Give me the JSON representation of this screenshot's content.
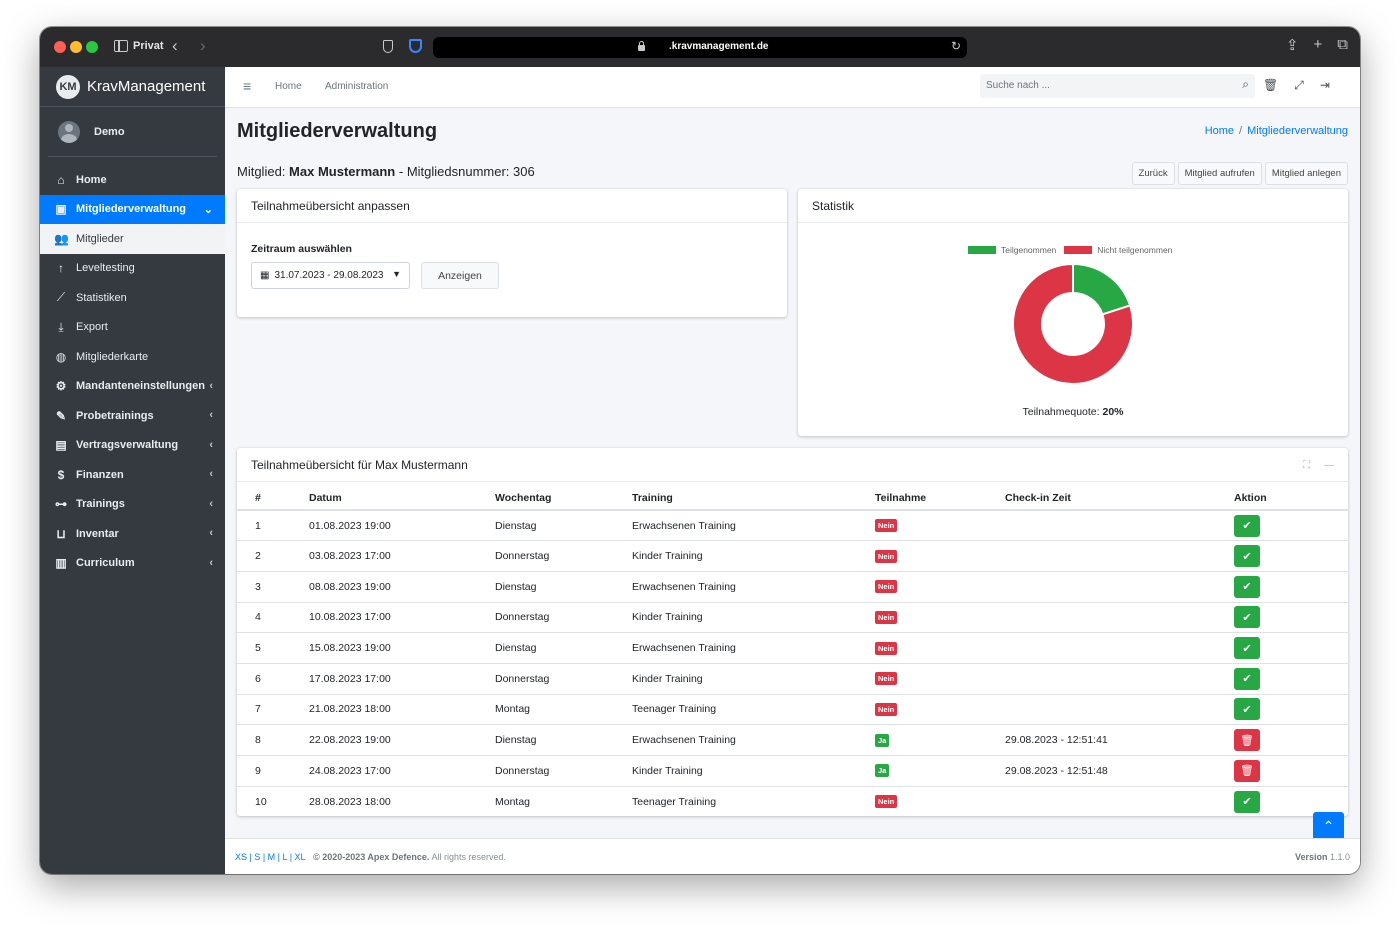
{
  "browser": {
    "profile": "Privat",
    "url": ".kravmanagement.de"
  },
  "app": {
    "brand": "KravManagement",
    "brand_logo": "KM",
    "user": "Demo"
  },
  "sidebar": {
    "items": [
      {
        "label": "Home",
        "icon": "home-icon"
      },
      {
        "label": "Mitgliederverwaltung",
        "icon": "id-card-icon"
      },
      {
        "label": "Mitglieder",
        "icon": "users-icon"
      },
      {
        "label": "Leveltesting",
        "icon": "level-up-icon"
      },
      {
        "label": "Statistiken",
        "icon": "chart-line-icon"
      },
      {
        "label": "Export",
        "icon": "download-icon"
      },
      {
        "label": "Mitgliederkarte",
        "icon": "globe-icon"
      },
      {
        "label": "Mandanteneinstellungen",
        "icon": "cogs-icon"
      },
      {
        "label": "Probetrainings",
        "icon": "pen-icon"
      },
      {
        "label": "Vertragsverwaltung",
        "icon": "file-contract-icon"
      },
      {
        "label": "Finanzen",
        "icon": "hand-holding-dollar-icon"
      },
      {
        "label": "Trainings",
        "icon": "dumbbell-icon"
      },
      {
        "label": "Inventar",
        "icon": "pallet-icon"
      },
      {
        "label": "Curriculum",
        "icon": "book-icon"
      }
    ]
  },
  "topbar": {
    "home": "Home",
    "admin": "Administration",
    "search_placeholder": "Suche nach ..."
  },
  "page": {
    "title": "Mitgliederverwaltung",
    "breadcrumb_home": "Home",
    "breadcrumb_current": "Mitgliederverwaltung",
    "member_prefix": "Mitglied:",
    "member_name": "Max Mustermann",
    "member_number_label": "- Mitgliedsnummer: 306",
    "btn_back": "Zurück",
    "btn_open": "Mitglied aufrufen",
    "btn_create": "Mitglied anlegen"
  },
  "filter": {
    "title": "Teilnahmeübersicht anpassen",
    "range_label": "Zeitraum auswählen",
    "range_value": "31.07.2023 - 29.08.2023",
    "show_button": "Anzeigen"
  },
  "statistik": {
    "title": "Statistik",
    "quote_label": "Teilnahmequote:",
    "quote_value": "20%"
  },
  "chart_data": {
    "type": "pie",
    "donut": true,
    "labels": [
      "Teilgenommen",
      "Nicht teilgenommen"
    ],
    "values": [
      2,
      8
    ],
    "colors": [
      "#28a745",
      "#dc3545"
    ],
    "legend": "top"
  },
  "attendance": {
    "title": "Teilnahmeübersicht für Max Mustermann",
    "columns": [
      "#",
      "Datum",
      "Wochentag",
      "Training",
      "Teilnahme",
      "Check-in Zeit",
      "Aktion"
    ],
    "rows": [
      {
        "n": "1",
        "date": "01.08.2023 19:00",
        "day": "Dienstag",
        "training": "Erwachsenen Training",
        "status": "Nein",
        "checkin": ""
      },
      {
        "n": "2",
        "date": "03.08.2023 17:00",
        "day": "Donnerstag",
        "training": "Kinder Training",
        "status": "Nein",
        "checkin": ""
      },
      {
        "n": "3",
        "date": "08.08.2023 19:00",
        "day": "Dienstag",
        "training": "Erwachsenen Training",
        "status": "Nein",
        "checkin": ""
      },
      {
        "n": "4",
        "date": "10.08.2023 17:00",
        "day": "Donnerstag",
        "training": "Kinder Training",
        "status": "Nein",
        "checkin": ""
      },
      {
        "n": "5",
        "date": "15.08.2023 19:00",
        "day": "Dienstag",
        "training": "Erwachsenen Training",
        "status": "Nein",
        "checkin": ""
      },
      {
        "n": "6",
        "date": "17.08.2023 17:00",
        "day": "Donnerstag",
        "training": "Kinder Training",
        "status": "Nein",
        "checkin": ""
      },
      {
        "n": "7",
        "date": "21.08.2023 18:00",
        "day": "Montag",
        "training": "Teenager Training",
        "status": "Nein",
        "checkin": ""
      },
      {
        "n": "8",
        "date": "22.08.2023 19:00",
        "day": "Dienstag",
        "training": "Erwachsenen Training",
        "status": "Ja",
        "checkin": "29.08.2023 - 12:51:41"
      },
      {
        "n": "9",
        "date": "24.08.2023 17:00",
        "day": "Donnerstag",
        "training": "Kinder Training",
        "status": "Ja",
        "checkin": "29.08.2023 - 12:51:48"
      },
      {
        "n": "10",
        "date": "28.08.2023 18:00",
        "day": "Montag",
        "training": "Teenager Training",
        "status": "Nein",
        "checkin": ""
      }
    ]
  },
  "footer": {
    "breakpoints": "XS | S | M | L | XL",
    "copyright": "© 2020-2023 Apex Defence.",
    "rights": "All rights reserved.",
    "version_label": "Version",
    "version": "1.1.0"
  }
}
